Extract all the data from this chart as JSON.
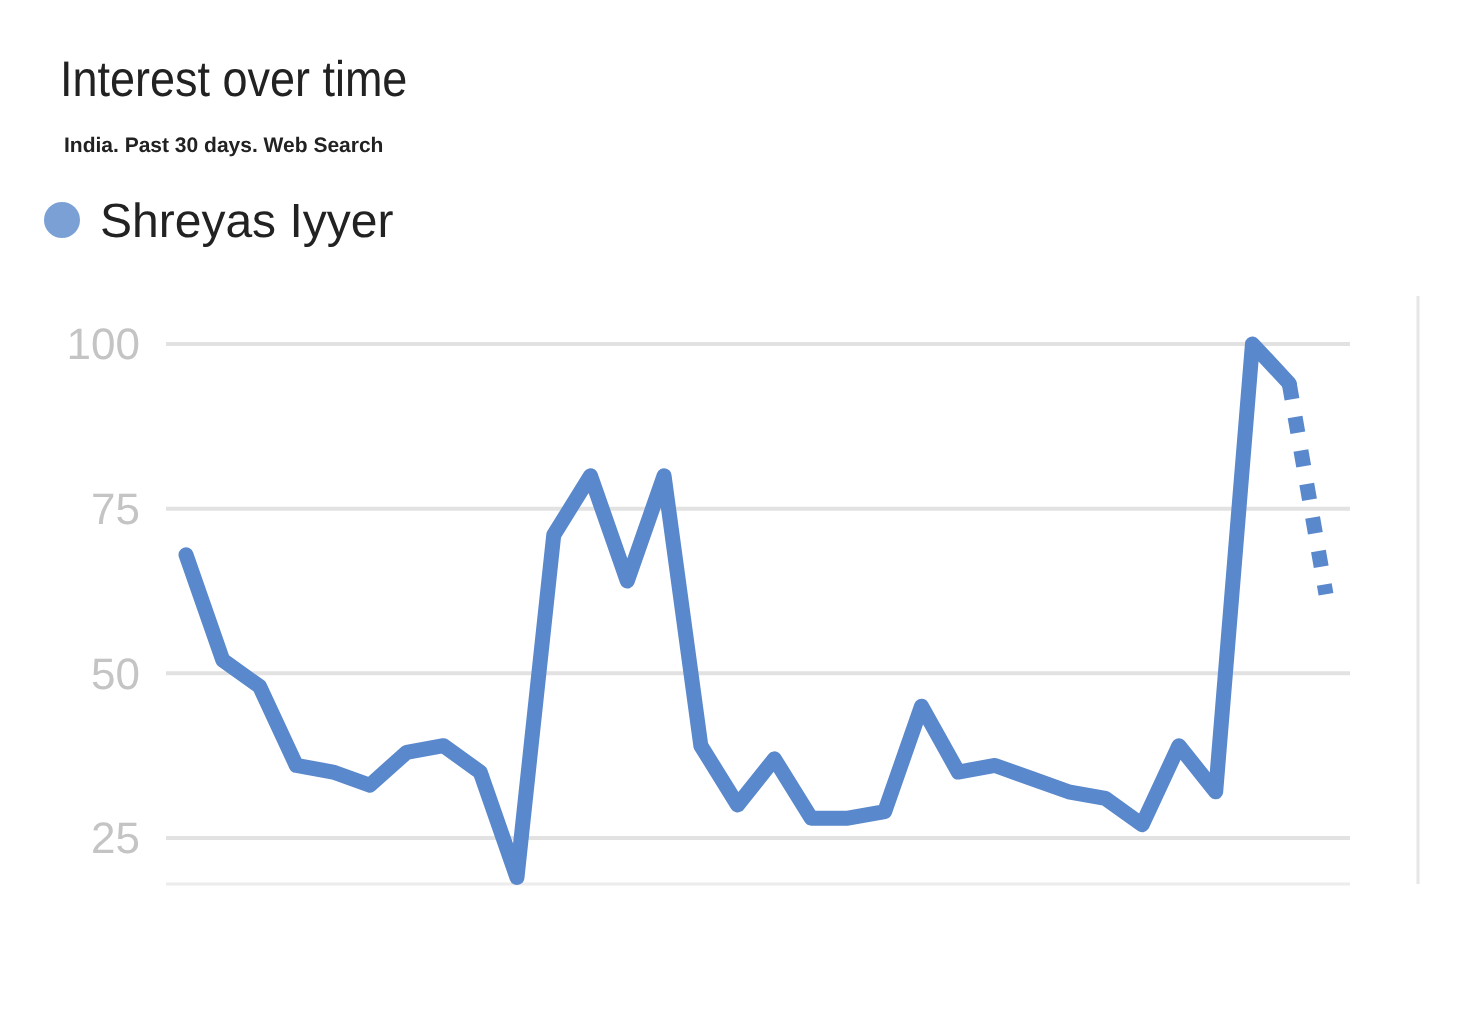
{
  "chart_data": {
    "type": "line",
    "title": "Interest over time",
    "subtitle": "India. Past 30 days. Web Search",
    "categories": [
      null,
      null,
      null,
      null,
      null,
      null,
      null,
      null,
      null,
      null,
      null,
      null,
      null,
      null,
      null,
      null,
      null,
      null,
      null,
      null,
      null,
      null,
      null,
      null,
      null,
      null,
      null,
      null,
      null,
      null,
      null,
      null
    ],
    "series": [
      {
        "name": "Shreyas Iyyer",
        "color": "#5a88cc",
        "line_style": "solid",
        "values": [
          68,
          52,
          48,
          36,
          35,
          33,
          38,
          39,
          35,
          19,
          71,
          80,
          64,
          80,
          39,
          30,
          37,
          28,
          28,
          29,
          45,
          35,
          36,
          34,
          32,
          31,
          27,
          39,
          32,
          100,
          94,
          null
        ]
      },
      {
        "color": "#5a88cc",
        "line_style": "dotted",
        "values": [
          null,
          null,
          null,
          null,
          null,
          null,
          null,
          null,
          null,
          null,
          null,
          null,
          null,
          null,
          null,
          null,
          null,
          null,
          null,
          null,
          null,
          null,
          null,
          null,
          null,
          null,
          null,
          null,
          null,
          null,
          94,
          62
        ]
      }
    ],
    "ylim": [
      18,
      100
    ],
    "yticks": [
      25,
      50,
      75,
      100
    ],
    "grid": "y",
    "legend": "top left",
    "tick_labels": "y"
  }
}
